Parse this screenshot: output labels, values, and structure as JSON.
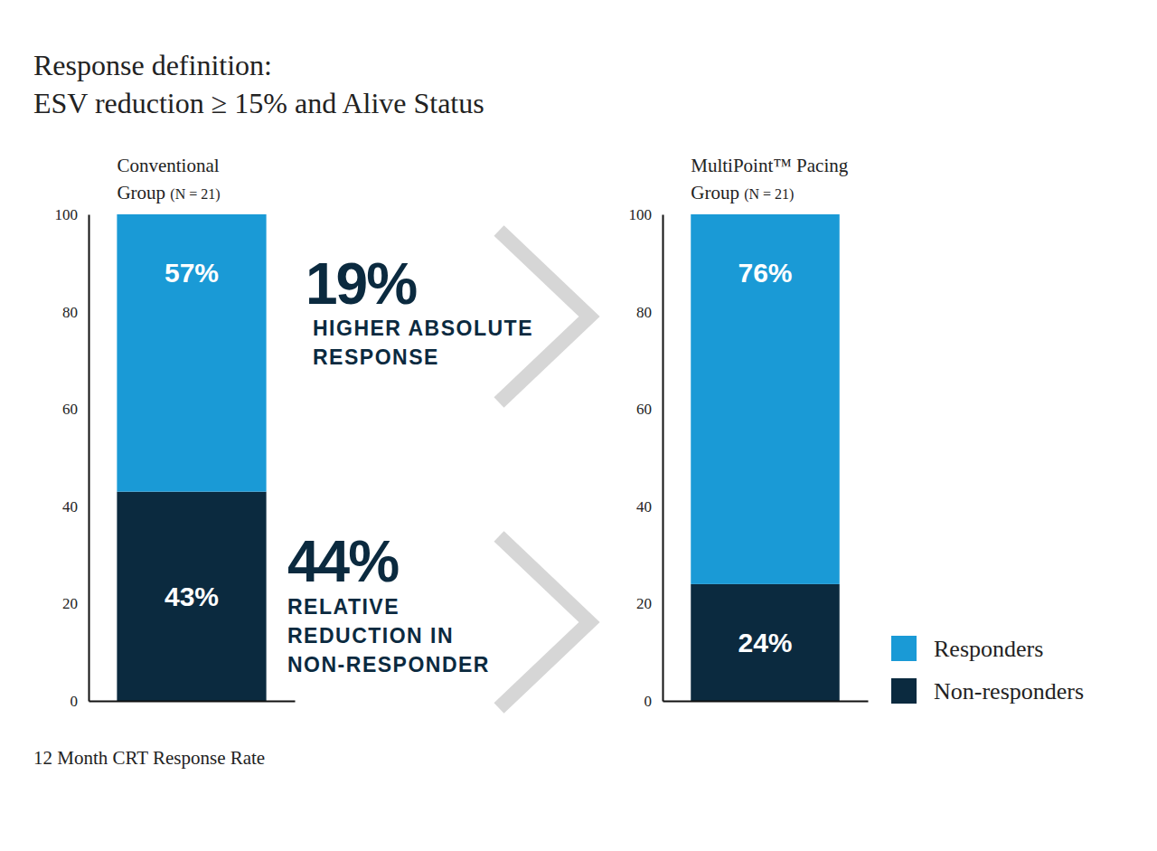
{
  "chart_data": [
    {
      "type": "bar",
      "stacked": true,
      "data_labels": true,
      "title": "Response definition:\nESV reduction ≥ 15% and Alive Status",
      "caption": "12 Month CRT Response Rate",
      "categories": [
        "Conventional\nGroup (N = 21)"
      ],
      "series": [
        {
          "name": "Non-responders",
          "color": "#0b2a3f",
          "values": [
            43
          ],
          "value_labels": [
            "43%"
          ]
        },
        {
          "name": "Responders",
          "color": "#1a9ad6",
          "values": [
            57
          ],
          "value_labels": [
            "57%"
          ]
        }
      ],
      "ylim": [
        0,
        100
      ],
      "yticks": [
        0,
        20,
        40,
        60,
        80,
        100
      ],
      "annotations": [
        {
          "label": "19%",
          "text": "HIGHER ABSOLUTE\nRESPONSE"
        },
        {
          "label": "44%",
          "text": "RELATIVE\nREDUCTION IN\nNON-RESPONDER"
        }
      ]
    },
    {
      "type": "bar",
      "stacked": true,
      "data_labels": true,
      "legend": "bottom-right",
      "categories": [
        "MultiPoint™ Pacing\nGroup (N = 21)"
      ],
      "series": [
        {
          "name": "Non-responders",
          "color": "#0b2a3f",
          "values": [
            24
          ],
          "value_labels": [
            "24%"
          ]
        },
        {
          "name": "Responders",
          "color": "#1a9ad6",
          "values": [
            76
          ],
          "value_labels": [
            "76%"
          ]
        }
      ],
      "ylim": [
        0,
        100
      ],
      "yticks": [
        0,
        20,
        40,
        60,
        80,
        100
      ]
    }
  ]
}
